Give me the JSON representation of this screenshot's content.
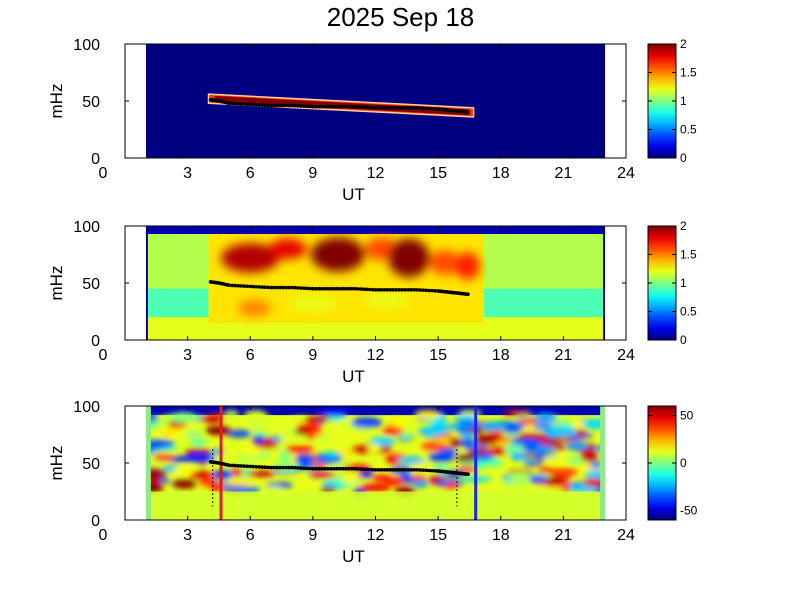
{
  "title": "2025 Sep 18",
  "chart_data": [
    {
      "type": "heatmap",
      "panel": "top",
      "xlabel": "UT",
      "ylabel": "mHz",
      "xlim": [
        0,
        24
      ],
      "ylim": [
        0,
        100
      ],
      "xticks": [
        0,
        3,
        6,
        9,
        12,
        15,
        18,
        21,
        24
      ],
      "yticks": [
        0,
        50,
        100
      ],
      "data_span_ut": [
        1,
        23
      ],
      "colorbar": {
        "range": [
          0,
          2
        ],
        "ticks": [
          0,
          0.5,
          1,
          1.5,
          2
        ],
        "tick_labels": [
          "0",
          "0.5",
          "1",
          "1.5",
          "2"
        ],
        "colormap": "jet"
      },
      "background_level": 0,
      "band": {
        "start": [
          4,
          52
        ],
        "end": [
          16.7,
          40
        ],
        "half_width_mhz": 4,
        "level": 2
      },
      "track": {
        "x": [
          4.1,
          4.5,
          5,
          6,
          7,
          8,
          9,
          10,
          11,
          12,
          13,
          14,
          15,
          15.5,
          16,
          16.5
        ],
        "y": [
          51,
          50,
          48,
          47,
          46,
          46,
          45,
          45,
          45,
          44,
          44,
          44,
          43,
          42,
          41,
          40
        ]
      }
    },
    {
      "type": "heatmap",
      "panel": "middle",
      "xlabel": "UT",
      "ylabel": "mHz",
      "xlim": [
        0,
        24
      ],
      "ylim": [
        0,
        100
      ],
      "xticks": [
        0,
        3,
        6,
        9,
        12,
        15,
        18,
        21,
        24
      ],
      "yticks": [
        0,
        50,
        100
      ],
      "data_span_ut": [
        1,
        23
      ],
      "colorbar": {
        "range": [
          0,
          2
        ],
        "ticks": [
          0,
          0.5,
          1,
          1.5,
          2
        ],
        "tick_labels": [
          "0",
          "0.5",
          "1",
          "1.5",
          "2"
        ],
        "colormap": "jet"
      },
      "blobs": [
        {
          "ut": 6.0,
          "mhz": 72,
          "rx": 1.4,
          "ry": 13,
          "level": 1.9
        },
        {
          "ut": 7.8,
          "mhz": 80,
          "rx": 0.9,
          "ry": 9,
          "level": 1.8
        },
        {
          "ut": 10.2,
          "mhz": 75,
          "rx": 1.3,
          "ry": 15,
          "level": 2.0
        },
        {
          "ut": 12.3,
          "mhz": 80,
          "rx": 0.8,
          "ry": 10,
          "level": 1.6
        },
        {
          "ut": 13.6,
          "mhz": 72,
          "rx": 1.0,
          "ry": 17,
          "level": 2.0
        },
        {
          "ut": 15.3,
          "mhz": 68,
          "rx": 0.7,
          "ry": 11,
          "level": 1.6
        },
        {
          "ut": 16.4,
          "mhz": 65,
          "rx": 0.6,
          "ry": 12,
          "level": 1.7
        },
        {
          "ut": 6.2,
          "mhz": 28,
          "rx": 0.8,
          "ry": 7,
          "level": 1.5
        },
        {
          "ut": 9.0,
          "mhz": 32,
          "rx": 1.2,
          "ry": 6,
          "level": 1.2
        },
        {
          "ut": 12.5,
          "mhz": 35,
          "rx": 1.0,
          "ry": 6,
          "level": 1.2
        }
      ],
      "track": {
        "x": [
          4.1,
          4.5,
          5,
          6,
          7,
          8,
          9,
          10,
          11,
          12,
          13,
          14,
          15,
          15.5,
          16,
          16.5
        ],
        "y": [
          51,
          50,
          48,
          47,
          46,
          46,
          45,
          45,
          45,
          44,
          44,
          44,
          43,
          42,
          41,
          40
        ]
      }
    },
    {
      "type": "heatmap",
      "panel": "bottom",
      "xlabel": "UT",
      "ylabel": "mHz",
      "xlim": [
        0,
        24
      ],
      "ylim": [
        0,
        100
      ],
      "xticks": [
        0,
        3,
        6,
        9,
        12,
        15,
        18,
        21,
        24
      ],
      "yticks": [
        0,
        50,
        100
      ],
      "data_span_ut": [
        1,
        23
      ],
      "colorbar": {
        "range": [
          -60,
          60
        ],
        "ticks": [
          -50,
          0,
          50
        ],
        "tick_labels": [
          "-50",
          "0",
          "50"
        ],
        "colormap": "jet"
      },
      "vertical_lines": [
        {
          "ut": 4.6,
          "color": "#e11b1b"
        },
        {
          "ut": 16.8,
          "color": "#1d24e6"
        }
      ],
      "dotted_lines": [
        4.2,
        15.9
      ],
      "track": {
        "x": [
          4.1,
          4.5,
          5,
          6,
          7,
          8,
          9,
          10,
          11,
          12,
          13,
          14,
          15,
          15.5,
          16,
          16.5
        ],
        "y": [
          51,
          50,
          48,
          47,
          46,
          46,
          45,
          45,
          45,
          44,
          44,
          44,
          43,
          42,
          41,
          40
        ]
      }
    }
  ]
}
